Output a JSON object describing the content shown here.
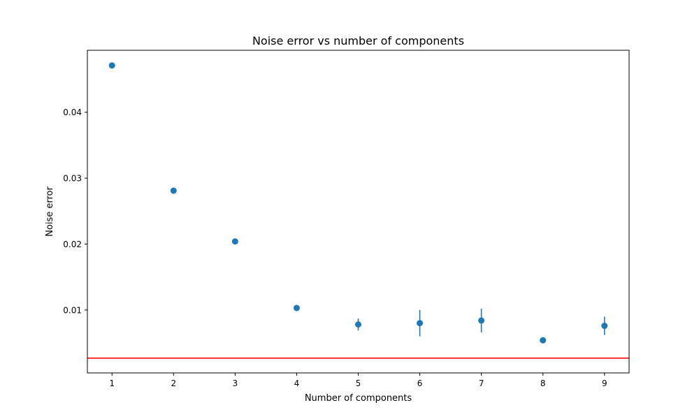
{
  "chart_data": {
    "type": "scatter",
    "title": "Noise error vs number of components",
    "xlabel": "Number of components",
    "ylabel": "Noise error",
    "xlim": [
      0.6,
      9.4
    ],
    "ylim": [
      0.00045,
      0.0494
    ],
    "xticks": [
      1,
      2,
      3,
      4,
      5,
      6,
      7,
      8,
      9
    ],
    "xtick_labels": [
      "1",
      "2",
      "3",
      "4",
      "5",
      "6",
      "7",
      "8",
      "9"
    ],
    "yticks": [
      0.01,
      0.02,
      0.03,
      0.04
    ],
    "ytick_labels": [
      "0.01",
      "0.02",
      "0.03",
      "0.04"
    ],
    "grid": false,
    "series": [
      {
        "color": "#1f77b4",
        "points": [
          {
            "x": 1,
            "y": 0.0471,
            "err": 0.0
          },
          {
            "x": 2,
            "y": 0.0281,
            "err": 0.0
          },
          {
            "x": 3,
            "y": 0.0204,
            "err": 0.0
          },
          {
            "x": 4,
            "y": 0.0103,
            "err": 0.0001
          },
          {
            "x": 5,
            "y": 0.0078,
            "err": 0.0009
          },
          {
            "x": 6,
            "y": 0.008,
            "err": 0.002
          },
          {
            "x": 7,
            "y": 0.0084,
            "err": 0.0018
          },
          {
            "x": 8,
            "y": 0.0054,
            "err": 0.0
          },
          {
            "x": 9,
            "y": 0.0076,
            "err": 0.0014
          }
        ]
      }
    ],
    "reference_line": {
      "y": 0.0027,
      "color": "#ff0000"
    }
  }
}
